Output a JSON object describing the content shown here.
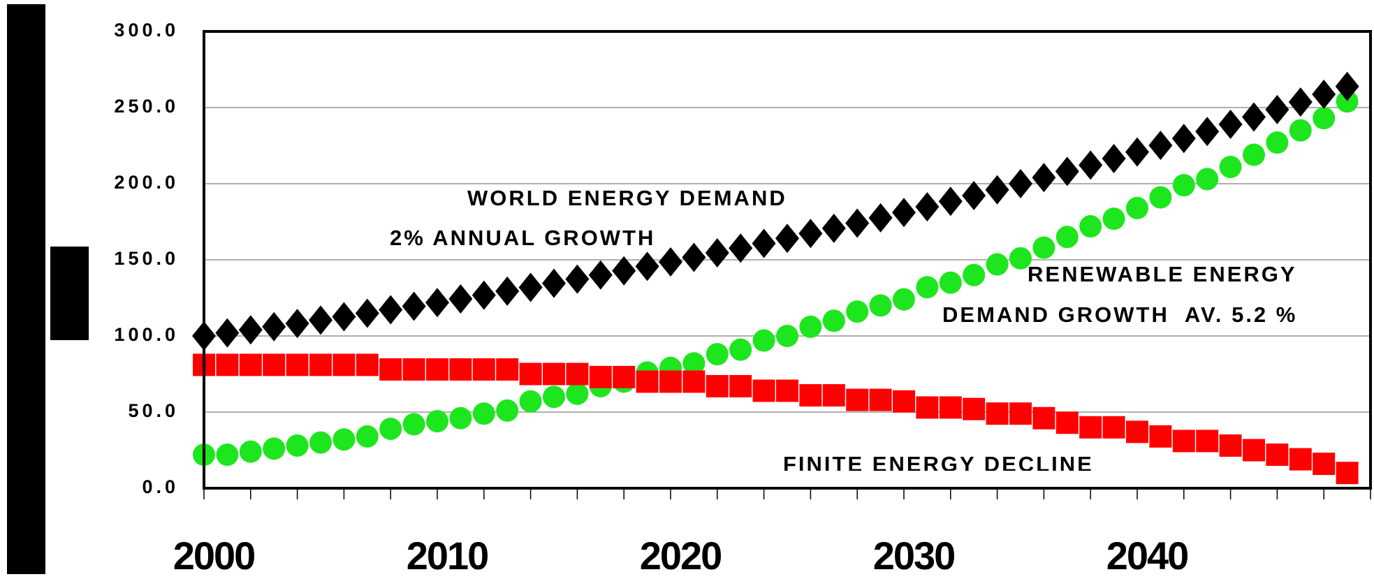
{
  "chart_data": {
    "type": "scatter",
    "x": [
      2000,
      2001,
      2002,
      2003,
      2004,
      2005,
      2006,
      2007,
      2008,
      2009,
      2010,
      2011,
      2012,
      2013,
      2014,
      2015,
      2016,
      2017,
      2018,
      2019,
      2020,
      2021,
      2022,
      2023,
      2024,
      2025,
      2026,
      2027,
      2028,
      2029,
      2030,
      2031,
      2032,
      2033,
      2034,
      2035,
      2036,
      2037,
      2038,
      2039,
      2040,
      2041,
      2042,
      2043,
      2044,
      2045,
      2046,
      2047,
      2048,
      2049
    ],
    "series": [
      {
        "name": "renewable",
        "color": "#1ee61e",
        "marker": "circle",
        "values": [
          22,
          22,
          24,
          26,
          28,
          30,
          32,
          34,
          39,
          42,
          44,
          46,
          49,
          51,
          57,
          60,
          62,
          67,
          70,
          76,
          79,
          82,
          88,
          91,
          97,
          100,
          106,
          110,
          116,
          120,
          124,
          132,
          135,
          140,
          147,
          151,
          158,
          165,
          172,
          177,
          184,
          191,
          199,
          203,
          211,
          219,
          227,
          235,
          243,
          254
        ]
      },
      {
        "name": "finite",
        "color": "#ff0000",
        "marker": "square",
        "values": [
          81,
          81,
          81,
          81,
          81,
          81,
          81,
          81,
          78,
          78,
          78,
          78,
          78,
          78,
          75,
          75,
          75,
          73,
          73,
          70,
          70,
          70,
          67,
          67,
          64,
          64,
          61,
          61,
          58,
          58,
          57,
          53,
          53,
          52,
          49,
          49,
          46,
          43,
          40,
          40,
          37,
          34,
          31,
          31,
          28,
          25,
          22,
          19,
          16,
          10
        ]
      },
      {
        "name": "world",
        "color": "#000000",
        "marker": "diamond",
        "values": [
          100,
          102,
          104,
          106.1,
          108.2,
          110.4,
          112.6,
          114.9,
          117.2,
          119.5,
          121.9,
          124.3,
          126.8,
          129.4,
          131.9,
          134.6,
          137.3,
          140,
          142.8,
          145.7,
          148.6,
          151.6,
          154.6,
          157.7,
          160.8,
          164.1,
          167.3,
          170.7,
          174.1,
          177.6,
          181.1,
          184.8,
          188.4,
          192.2,
          196,
          200,
          204,
          208.1,
          212.2,
          216.5,
          220.8,
          225.2,
          229.7,
          234.3,
          239,
          243.8,
          248.7,
          253.6,
          258.7,
          263.9
        ]
      }
    ],
    "xlim": [
      2000,
      2050
    ],
    "xticks": [
      2000,
      2010,
      2020,
      2030,
      2040
    ],
    "minor_xticks": [
      2000,
      2002,
      2004,
      2006,
      2008,
      2010,
      2012,
      2014,
      2016,
      2018,
      2020,
      2022,
      2024,
      2026,
      2028,
      2030,
      2032,
      2034,
      2036,
      2038,
      2040,
      2042,
      2044,
      2046,
      2048,
      2050
    ],
    "ylim": [
      0,
      300
    ],
    "yticks": [
      {
        "value": 0,
        "label": "0.0"
      },
      {
        "value": 50,
        "label": "50.0"
      },
      {
        "value": 100,
        "label": "100.0"
      },
      {
        "value": 150,
        "label": "150.0"
      },
      {
        "value": 200,
        "label": "200.0"
      },
      {
        "value": 250,
        "label": "250.0"
      },
      {
        "value": 300,
        "label": "300.0"
      }
    ],
    "grid": true,
    "annotations": [
      "WORLD ENERGY DEMAND",
      "2% ANNUAL GROWTH",
      "RENEWABLE ENERGY",
      "DEMAND GROWTH  AV. 5.2 %",
      "FINITE ENERGY DECLINE"
    ]
  }
}
